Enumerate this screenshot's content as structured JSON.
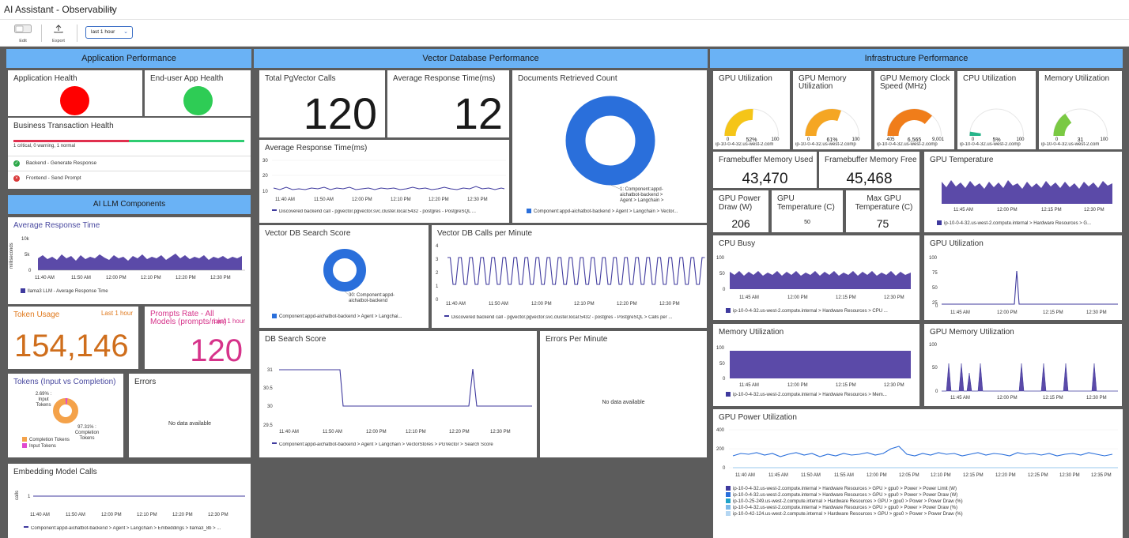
{
  "header": {
    "title": "AI Assistant - Observability"
  },
  "toolbar": {
    "edit": "Edit",
    "export": "Export",
    "time_range": "last 1 hour"
  },
  "sections": {
    "app": "Application Performance",
    "vector": "Vector Database Performance",
    "infra": "Infrastructure Performance",
    "llm": "AI LLM Components"
  },
  "colors": {
    "header_bg": "#6ab2f5",
    "series": "#5b4aa8",
    "red": "#ff0000",
    "green": "#2ecc55"
  },
  "app": {
    "app_health": "Application Health",
    "enduser_health": "End-user App Health",
    "bt_health": "Business Transaction Health",
    "bt_summary": "1 critical, 0 warning, 1 normal",
    "bt_rows": [
      "Backend - Generate Response",
      "Frontend - Send Prompt"
    ]
  },
  "llm": {
    "avg_resp": {
      "title": "Average Response Time",
      "ylabel": "milliseconds",
      "yticks": [
        "10k",
        "5k",
        "0"
      ],
      "xticks": [
        "11:40 AM",
        "11:50 AM",
        "12:00 PM",
        "12:10 PM",
        "12:20 PM",
        "12:30 PM"
      ],
      "legend": "llama3 LLM - Average Response Time"
    },
    "token_usage": {
      "title": "Token Usage",
      "range": "Last 1 hour",
      "value": "154,146"
    },
    "prompts_rate": {
      "title": "Prompts Rate - All Models (prompts/min)",
      "range": "Last 1 hour",
      "value": "120"
    },
    "tokens": {
      "title": "Tokens (Input vs Completion)",
      "input_label": "2.69% : Input Tokens",
      "completion_label": "97.31% : Completion Tokens",
      "legend": [
        "Completion Tokens",
        "Input Tokens"
      ]
    },
    "errors": {
      "title": "Errors",
      "nodata": "No data available"
    },
    "embedding": {
      "title": "Embedding Model Calls",
      "ylabel": "calls",
      "ytick": "1",
      "xticks": [
        "11:40 AM",
        "11:50 AM",
        "12:00 PM",
        "12:10 PM",
        "12:20 PM",
        "12:30 PM"
      ],
      "legend": "Component:appd-aichatbot-backend > Agent > Langchain > Embeddings > llama3_8b > ..."
    }
  },
  "vector": {
    "pg_calls": {
      "title": "Total PgVector Calls",
      "value": "120"
    },
    "avg_resp_ms": {
      "title": "Average Response Time(ms)",
      "value": "12"
    },
    "docs": {
      "title": "Documents Retrieved Count",
      "label": "1: Component:appd-aichatbot-backend > Agent > Langchain >",
      "legend": "Component:appd-aichatbot-backend > Agent > Langchain > Vector..."
    },
    "avg_resp_chart": {
      "title": "Average Response Time(ms)",
      "yticks": [
        "30",
        "20",
        "10"
      ],
      "xticks": [
        "11:40 AM",
        "11:50 AM",
        "12:00 PM",
        "12:10 PM",
        "12:20 PM",
        "12:30 PM"
      ],
      "legend": "Discovered backend call - pgvector.pgvector.svc.cluster.local:5432 - postgres - PostgreSQL ..."
    },
    "search_score": {
      "title": "Vector DB Search Score",
      "label": "30: Component:appd-aichatbot-backend",
      "legend": "Component:appd-aichatbot-backend > Agent > Langchai..."
    },
    "calls_per_min": {
      "title": "Vector DB Calls per Minute",
      "yticks": [
        "4",
        "3",
        "2",
        "1",
        "0"
      ],
      "xticks": [
        "11:40 AM",
        "11:50 AM",
        "12:00 PM",
        "12:10 PM",
        "12:20 PM",
        "12:30 PM"
      ],
      "legend": "Discovered backend call - pgvector.pgvector.svc.cluster.local:5432 - postgres - PostgreSQL > Calls per ..."
    },
    "db_search": {
      "title": "DB Search Score",
      "yticks": [
        "31",
        "30.5",
        "30",
        "29.5"
      ],
      "xticks": [
        "11:40 AM",
        "11:50 AM",
        "12:00 PM",
        "12:10 PM",
        "12:20 PM",
        "12:30 PM"
      ],
      "legend": "Component:appd-aichatbot-backend > Agent > Langchain > VectorStores > PGVector > Search Score"
    },
    "errors_pm": {
      "title": "Errors Per Minute",
      "nodata": "No data available"
    }
  },
  "infra": {
    "gauges": [
      {
        "title": "GPU Utilization",
        "value": "52%",
        "min": "0",
        "max": "100",
        "host": "ip-10-0-4-32.us-west-2.com",
        "pct": 52,
        "color": "#f5c518"
      },
      {
        "title": "GPU Memory Utilization",
        "value": "61%",
        "min": "0",
        "max": "100",
        "host": "ip-10-0-4-32.us-west-2.comp",
        "pct": 61,
        "color": "#f5a623"
      },
      {
        "title": "GPU Memory Clock Speed (MHz)",
        "value": "6,565",
        "min": "405",
        "max": "9,001",
        "host": "ip-10-0-4-32.us-west-2.comp",
        "pct": 73,
        "color": "#f07d1a"
      },
      {
        "title": "CPU Utilization",
        "value": "5%",
        "min": "0",
        "max": "100",
        "host": "ip-10-0-4-32.us-west-2.comp",
        "pct": 5,
        "color": "#27b58a"
      },
      {
        "title": "Memory Utilization",
        "value": "31",
        "min": "0",
        "max": "100",
        "host": "ip-10-0-4-32.us-west-2.com",
        "pct": 31,
        "color": "#7ac943"
      }
    ],
    "fb_used": {
      "title": "Framebuffer Memory Used",
      "value": "43,470"
    },
    "fb_free": {
      "title": "Framebuffer Memory Free",
      "value": "45,468"
    },
    "gpu_power": {
      "title": "GPU Power Draw (W)",
      "value": "206"
    },
    "gpu_temp": {
      "title": "GPU Temperature (C)",
      "value": "50"
    },
    "max_gpu_temp": {
      "title": "Max GPU Temperature (C)",
      "value": "75"
    },
    "gpu_temp_chart": {
      "title": "GPU Temperature",
      "xticks": [
        "11:45 AM",
        "12:00 PM",
        "12:15 PM",
        "12:30 PM"
      ],
      "legend": "ip-10-0-4-32.us-west-2.compute.internal > Hardware Resources > G..."
    },
    "cpu_busy": {
      "title": "CPU Busy",
      "yticks": [
        "100",
        "50",
        "0"
      ],
      "xticks": [
        "11:45 AM",
        "12:00 PM",
        "12:15 PM",
        "12:30 PM"
      ],
      "legend": "ip-10-0-4-32.us-west-2.compute.internal > Hardware Resources > CPU ..."
    },
    "gpu_util": {
      "title": "GPU Utilization",
      "yticks": [
        "100",
        "75",
        "50",
        "25",
        "0"
      ],
      "xticks": [
        "11:45 AM",
        "12:00 PM",
        "12:15 PM",
        "12:30 PM"
      ]
    },
    "mem_util": {
      "title": "Memory Utilization",
      "yticks": [
        "100",
        "50",
        "0"
      ],
      "xticks": [
        "11:45 AM",
        "12:00 PM",
        "12:15 PM",
        "12:30 PM"
      ],
      "legend": "ip-10-0-4-32.us-west-2.compute.internal > Hardware Resources > Mem..."
    },
    "gpu_mem_util": {
      "title": "GPU Memory Utilization",
      "yticks": [
        "100",
        "50",
        "0"
      ],
      "xticks": [
        "11:45 AM",
        "12:00 PM",
        "12:15 PM",
        "12:30 PM"
      ]
    },
    "power_util": {
      "title": "GPU Power Utilization",
      "yticks": [
        "400",
        "200",
        "0"
      ],
      "xticks": [
        "11:40 AM",
        "11:45 AM",
        "11:50 AM",
        "11:55 AM",
        "12:00 PM",
        "12:05 PM",
        "12:10 PM",
        "12:15 PM",
        "12:20 PM",
        "12:25 PM",
        "12:30 PM",
        "12:35 PM"
      ],
      "legend": [
        "ip-10-0-4-32.us-west-2.compute.internal > Hardware Resources > GPU > gpu0 > Power > Power Limit (W)",
        "ip-10-0-4-32.us-west-2.compute.internal > Hardware Resources > GPU > gpu0 > Power > Power Draw (W)",
        "ip-10-0-25-249.us-west-2.compute.internal > Hardware Resources > GPU > gpu0 > Power > Power Draw (%)",
        "ip-10-0-4-32.us-west-2.compute.internal > Hardware Resources > GPU > gpu0 > Power > Power Draw (%)",
        "ip-10-0-42-124.us-west-2.compute.internal > Hardware Resources > GPU > gpu0 > Power > Power Draw (%)"
      ],
      "legend_colors": [
        "#3f3a9e",
        "#2a6fdb",
        "#1fa3c9",
        "#7ab8e8",
        "#b4d6f2"
      ]
    }
  }
}
